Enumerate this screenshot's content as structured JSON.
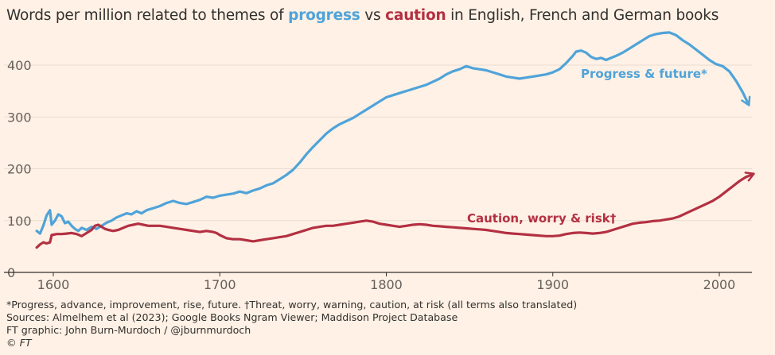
{
  "title": {
    "prefix": "Words per million related to themes of ",
    "progress_word": "progress",
    "middle": " vs ",
    "caution_word": "caution",
    "suffix": " in English, French and German books"
  },
  "colors": {
    "progress": "#4fa3d9",
    "caution": "#b33042",
    "background": "#fff1e5",
    "grid": "#e8dcd1",
    "axis": "#33302e"
  },
  "chart_data": {
    "type": "line",
    "title": "Words per million related to themes of progress vs caution in English, French and German books",
    "xlim": [
      1590,
      2020
    ],
    "ylim": [
      0,
      470
    ],
    "x_ticks": [
      1600,
      1700,
      1800,
      1900,
      2000
    ],
    "y_ticks": [
      0,
      100,
      200,
      300,
      400
    ],
    "grid": true,
    "series": [
      {
        "name": "Progress & future*",
        "color": "#4fa3d9",
        "points": [
          [
            1590,
            80
          ],
          [
            1592,
            75
          ],
          [
            1594,
            90
          ],
          [
            1596,
            110
          ],
          [
            1598,
            120
          ],
          [
            1599,
            92
          ],
          [
            1601,
            100
          ],
          [
            1603,
            112
          ],
          [
            1605,
            108
          ],
          [
            1607,
            95
          ],
          [
            1609,
            98
          ],
          [
            1611,
            90
          ],
          [
            1613,
            84
          ],
          [
            1615,
            80
          ],
          [
            1617,
            86
          ],
          [
            1620,
            82
          ],
          [
            1623,
            88
          ],
          [
            1626,
            84
          ],
          [
            1629,
            90
          ],
          [
            1632,
            96
          ],
          [
            1635,
            100
          ],
          [
            1638,
            106
          ],
          [
            1641,
            110
          ],
          [
            1644,
            114
          ],
          [
            1647,
            112
          ],
          [
            1650,
            118
          ],
          [
            1653,
            114
          ],
          [
            1656,
            120
          ],
          [
            1660,
            124
          ],
          [
            1664,
            128
          ],
          [
            1668,
            134
          ],
          [
            1672,
            138
          ],
          [
            1676,
            134
          ],
          [
            1680,
            132
          ],
          [
            1684,
            136
          ],
          [
            1688,
            140
          ],
          [
            1692,
            146
          ],
          [
            1696,
            144
          ],
          [
            1700,
            148
          ],
          [
            1704,
            150
          ],
          [
            1708,
            152
          ],
          [
            1712,
            156
          ],
          [
            1716,
            153
          ],
          [
            1720,
            158
          ],
          [
            1724,
            162
          ],
          [
            1728,
            168
          ],
          [
            1732,
            172
          ],
          [
            1736,
            180
          ],
          [
            1740,
            188
          ],
          [
            1744,
            198
          ],
          [
            1748,
            212
          ],
          [
            1752,
            228
          ],
          [
            1756,
            242
          ],
          [
            1760,
            255
          ],
          [
            1764,
            268
          ],
          [
            1768,
            278
          ],
          [
            1772,
            286
          ],
          [
            1776,
            292
          ],
          [
            1780,
            298
          ],
          [
            1784,
            306
          ],
          [
            1788,
            314
          ],
          [
            1792,
            322
          ],
          [
            1796,
            330
          ],
          [
            1800,
            338
          ],
          [
            1804,
            342
          ],
          [
            1808,
            346
          ],
          [
            1812,
            350
          ],
          [
            1816,
            354
          ],
          [
            1820,
            358
          ],
          [
            1824,
            362
          ],
          [
            1828,
            368
          ],
          [
            1832,
            374
          ],
          [
            1836,
            382
          ],
          [
            1840,
            388
          ],
          [
            1844,
            392
          ],
          [
            1848,
            398
          ],
          [
            1852,
            394
          ],
          [
            1856,
            392
          ],
          [
            1860,
            390
          ],
          [
            1864,
            386
          ],
          [
            1868,
            382
          ],
          [
            1872,
            378
          ],
          [
            1876,
            376
          ],
          [
            1880,
            374
          ],
          [
            1884,
            376
          ],
          [
            1888,
            378
          ],
          [
            1892,
            380
          ],
          [
            1896,
            382
          ],
          [
            1900,
            386
          ],
          [
            1904,
            392
          ],
          [
            1908,
            404
          ],
          [
            1912,
            418
          ],
          [
            1914,
            426
          ],
          [
            1917,
            428
          ],
          [
            1920,
            424
          ],
          [
            1923,
            416
          ],
          [
            1926,
            412
          ],
          [
            1929,
            414
          ],
          [
            1932,
            410
          ],
          [
            1935,
            414
          ],
          [
            1938,
            418
          ],
          [
            1942,
            424
          ],
          [
            1946,
            432
          ],
          [
            1950,
            440
          ],
          [
            1954,
            448
          ],
          [
            1958,
            456
          ],
          [
            1962,
            460
          ],
          [
            1966,
            462
          ],
          [
            1970,
            463
          ],
          [
            1974,
            458
          ],
          [
            1978,
            448
          ],
          [
            1982,
            440
          ],
          [
            1986,
            430
          ],
          [
            1990,
            420
          ],
          [
            1994,
            410
          ],
          [
            1998,
            402
          ],
          [
            2002,
            398
          ],
          [
            2006,
            388
          ],
          [
            2010,
            370
          ],
          [
            2014,
            348
          ],
          [
            2017,
            328
          ]
        ]
      },
      {
        "name": "Caution, worry & risk†",
        "color": "#b33042",
        "points": [
          [
            1590,
            48
          ],
          [
            1592,
            54
          ],
          [
            1594,
            58
          ],
          [
            1596,
            56
          ],
          [
            1598,
            58
          ],
          [
            1599,
            72
          ],
          [
            1602,
            74
          ],
          [
            1605,
            74
          ],
          [
            1608,
            75
          ],
          [
            1611,
            76
          ],
          [
            1614,
            74
          ],
          [
            1617,
            70
          ],
          [
            1619,
            74
          ],
          [
            1621,
            78
          ],
          [
            1623,
            82
          ],
          [
            1625,
            90
          ],
          [
            1627,
            92
          ],
          [
            1629,
            88
          ],
          [
            1631,
            84
          ],
          [
            1633,
            82
          ],
          [
            1636,
            80
          ],
          [
            1639,
            82
          ],
          [
            1642,
            86
          ],
          [
            1645,
            90
          ],
          [
            1648,
            92
          ],
          [
            1651,
            94
          ],
          [
            1654,
            92
          ],
          [
            1657,
            90
          ],
          [
            1660,
            90
          ],
          [
            1664,
            90
          ],
          [
            1668,
            88
          ],
          [
            1672,
            86
          ],
          [
            1676,
            84
          ],
          [
            1680,
            82
          ],
          [
            1684,
            80
          ],
          [
            1688,
            78
          ],
          [
            1692,
            80
          ],
          [
            1696,
            78
          ],
          [
            1698,
            76
          ],
          [
            1700,
            72
          ],
          [
            1704,
            66
          ],
          [
            1708,
            64
          ],
          [
            1712,
            64
          ],
          [
            1716,
            62
          ],
          [
            1720,
            60
          ],
          [
            1724,
            62
          ],
          [
            1728,
            64
          ],
          [
            1732,
            66
          ],
          [
            1736,
            68
          ],
          [
            1740,
            70
          ],
          [
            1744,
            74
          ],
          [
            1748,
            78
          ],
          [
            1752,
            82
          ],
          [
            1756,
            86
          ],
          [
            1760,
            88
          ],
          [
            1764,
            90
          ],
          [
            1768,
            90
          ],
          [
            1772,
            92
          ],
          [
            1776,
            94
          ],
          [
            1780,
            96
          ],
          [
            1784,
            98
          ],
          [
            1788,
            100
          ],
          [
            1792,
            98
          ],
          [
            1796,
            94
          ],
          [
            1800,
            92
          ],
          [
            1804,
            90
          ],
          [
            1808,
            88
          ],
          [
            1812,
            90
          ],
          [
            1816,
            92
          ],
          [
            1820,
            93
          ],
          [
            1824,
            92
          ],
          [
            1828,
            90
          ],
          [
            1832,
            89
          ],
          [
            1836,
            88
          ],
          [
            1840,
            87
          ],
          [
            1844,
            86
          ],
          [
            1848,
            85
          ],
          [
            1852,
            84
          ],
          [
            1856,
            83
          ],
          [
            1860,
            82
          ],
          [
            1864,
            80
          ],
          [
            1868,
            78
          ],
          [
            1872,
            76
          ],
          [
            1876,
            75
          ],
          [
            1880,
            74
          ],
          [
            1884,
            73
          ],
          [
            1888,
            72
          ],
          [
            1892,
            71
          ],
          [
            1896,
            70
          ],
          [
            1900,
            70
          ],
          [
            1904,
            71
          ],
          [
            1908,
            74
          ],
          [
            1912,
            76
          ],
          [
            1916,
            77
          ],
          [
            1920,
            76
          ],
          [
            1924,
            75
          ],
          [
            1928,
            76
          ],
          [
            1932,
            78
          ],
          [
            1936,
            82
          ],
          [
            1940,
            86
          ],
          [
            1944,
            90
          ],
          [
            1948,
            94
          ],
          [
            1952,
            96
          ],
          [
            1956,
            97
          ],
          [
            1960,
            99
          ],
          [
            1964,
            100
          ],
          [
            1968,
            102
          ],
          [
            1972,
            104
          ],
          [
            1976,
            108
          ],
          [
            1980,
            114
          ],
          [
            1984,
            120
          ],
          [
            1988,
            126
          ],
          [
            1992,
            132
          ],
          [
            1996,
            138
          ],
          [
            2000,
            146
          ],
          [
            2004,
            156
          ],
          [
            2008,
            166
          ],
          [
            2012,
            176
          ],
          [
            2016,
            184
          ],
          [
            2019,
            188
          ]
        ]
      }
    ],
    "annotations": [
      {
        "text": "Progress & future*",
        "series": 0
      },
      {
        "text": "Caution, worry & risk†",
        "series": 1
      }
    ]
  },
  "footnotes": {
    "line1": "*Progress, advance, improvement, rise, future. †Threat, worry, warning, caution, at risk (all terms also translated)",
    "line2": "Sources: Almelhem et al (2023); Google Books Ngram Viewer; Maddison Project Database",
    "line3": "FT graphic: John Burn-Murdoch / @jburnmurdoch",
    "line4": "© FT"
  }
}
